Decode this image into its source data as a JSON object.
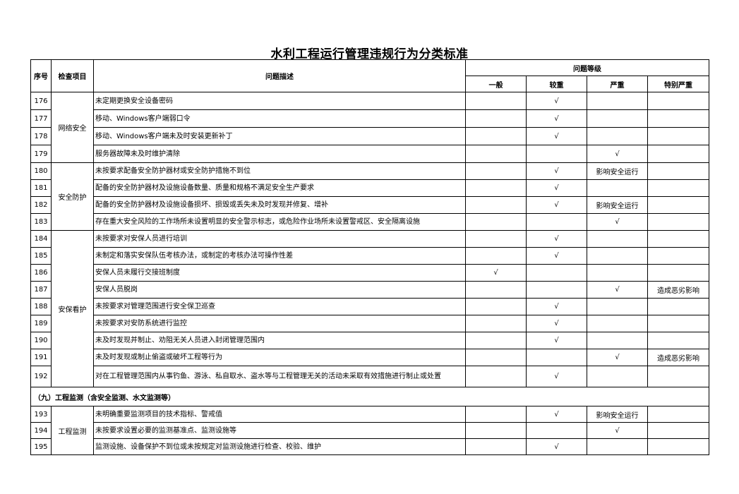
{
  "title": "水利工程运行管理违规行为分类标准",
  "headers": {
    "seq": "序号",
    "item": "检查项目",
    "desc": "问题描述",
    "level": "问题等级",
    "levels": [
      "一般",
      "较重",
      "严重",
      "特别严重"
    ]
  },
  "check_mark": "√",
  "groups": [
    {
      "name": "网络安全",
      "rows": [
        {
          "no": "176",
          "desc": "未定期更换安全设备密码",
          "levels": [
            "",
            "√",
            "",
            ""
          ]
        },
        {
          "no": "177",
          "desc": "移动、Windows客户端弱口令",
          "levels": [
            "",
            "√",
            "",
            ""
          ]
        },
        {
          "no": "178",
          "desc": "移动、Windows客户端未及时安装更新补丁",
          "levels": [
            "",
            "√",
            "",
            ""
          ]
        },
        {
          "no": "179",
          "desc": "服务器故障未及时维护清除",
          "levels": [
            "",
            "",
            "√",
            ""
          ]
        }
      ]
    },
    {
      "name": "安全防护",
      "rows": [
        {
          "no": "180",
          "desc": "未按要求配备安全防护器材或安全防护措施不到位",
          "levels": [
            "",
            "√",
            "影响安全运行",
            ""
          ]
        },
        {
          "no": "181",
          "desc": "配备的安全防护器材及设施设备数量、质量和规格不满足安全生产要求",
          "levels": [
            "",
            "√",
            "",
            ""
          ]
        },
        {
          "no": "182",
          "desc": "配备的安全防护器材及设施设备损坏、损毁或丢失未及时发现并修复、增补",
          "levels": [
            "",
            "√",
            "影响安全运行",
            ""
          ]
        },
        {
          "no": "183",
          "desc": "存在重大安全风险的工作场所未设置明显的安全警示标志，或危险作业场所未设置警戒区、安全隔离设施",
          "levels": [
            "",
            "",
            "√",
            ""
          ]
        }
      ]
    },
    {
      "name": "安保看护",
      "rows": [
        {
          "no": "184",
          "desc": "未按要求对安保人员进行培训",
          "levels": [
            "",
            "√",
            "",
            ""
          ]
        },
        {
          "no": "185",
          "desc": "未制定和落实安保队伍考核办法，或制定的考核办法可操作性差",
          "levels": [
            "",
            "√",
            "",
            ""
          ]
        },
        {
          "no": "186",
          "desc": "安保人员未履行交接班制度",
          "levels": [
            "√",
            "",
            "",
            ""
          ]
        },
        {
          "no": "187",
          "desc": "安保人员脱岗",
          "levels": [
            "",
            "",
            "√",
            "造成恶劣影响"
          ]
        },
        {
          "no": "188",
          "desc": "未按要求对管理范围进行安全保卫巡查",
          "levels": [
            "",
            "√",
            "",
            ""
          ]
        },
        {
          "no": "189",
          "desc": "未按要求对安防系统进行监控",
          "levels": [
            "",
            "√",
            "",
            ""
          ]
        },
        {
          "no": "190",
          "desc": "未及时发现并制止、劝阻无关人员进入封闭管理范围内",
          "levels": [
            "",
            "√",
            "",
            ""
          ]
        },
        {
          "no": "191",
          "desc": "未及时发现或制止偷盗或破坏工程等行为",
          "levels": [
            "",
            "",
            "√",
            "造成恶劣影响"
          ]
        },
        {
          "no": "192",
          "desc": "对在工程管理范围内从事钓鱼、游泳、私自取水、盗水等与工程管理无关的活动未采取有效措施进行制止或处置",
          "levels": [
            "",
            "√",
            "",
            ""
          ]
        }
      ]
    }
  ],
  "section": "（九）工程监测（含安全监测、水文监测等）",
  "groups2": [
    {
      "name": "工程监测",
      "rows": [
        {
          "no": "193",
          "desc": "未明确重要监测项目的技术指标、警戒值",
          "levels": [
            "",
            "√",
            "影响安全运行",
            ""
          ]
        },
        {
          "no": "194",
          "desc": "未按要求设置必要的监测基准点、监测设施等",
          "levels": [
            "",
            "",
            "√",
            ""
          ]
        },
        {
          "no": "195",
          "desc": "监测设施、设备保护不到位或未按规定对监测设施进行检查、校验、维护",
          "levels": [
            "",
            "√",
            "",
            ""
          ]
        }
      ]
    }
  ]
}
